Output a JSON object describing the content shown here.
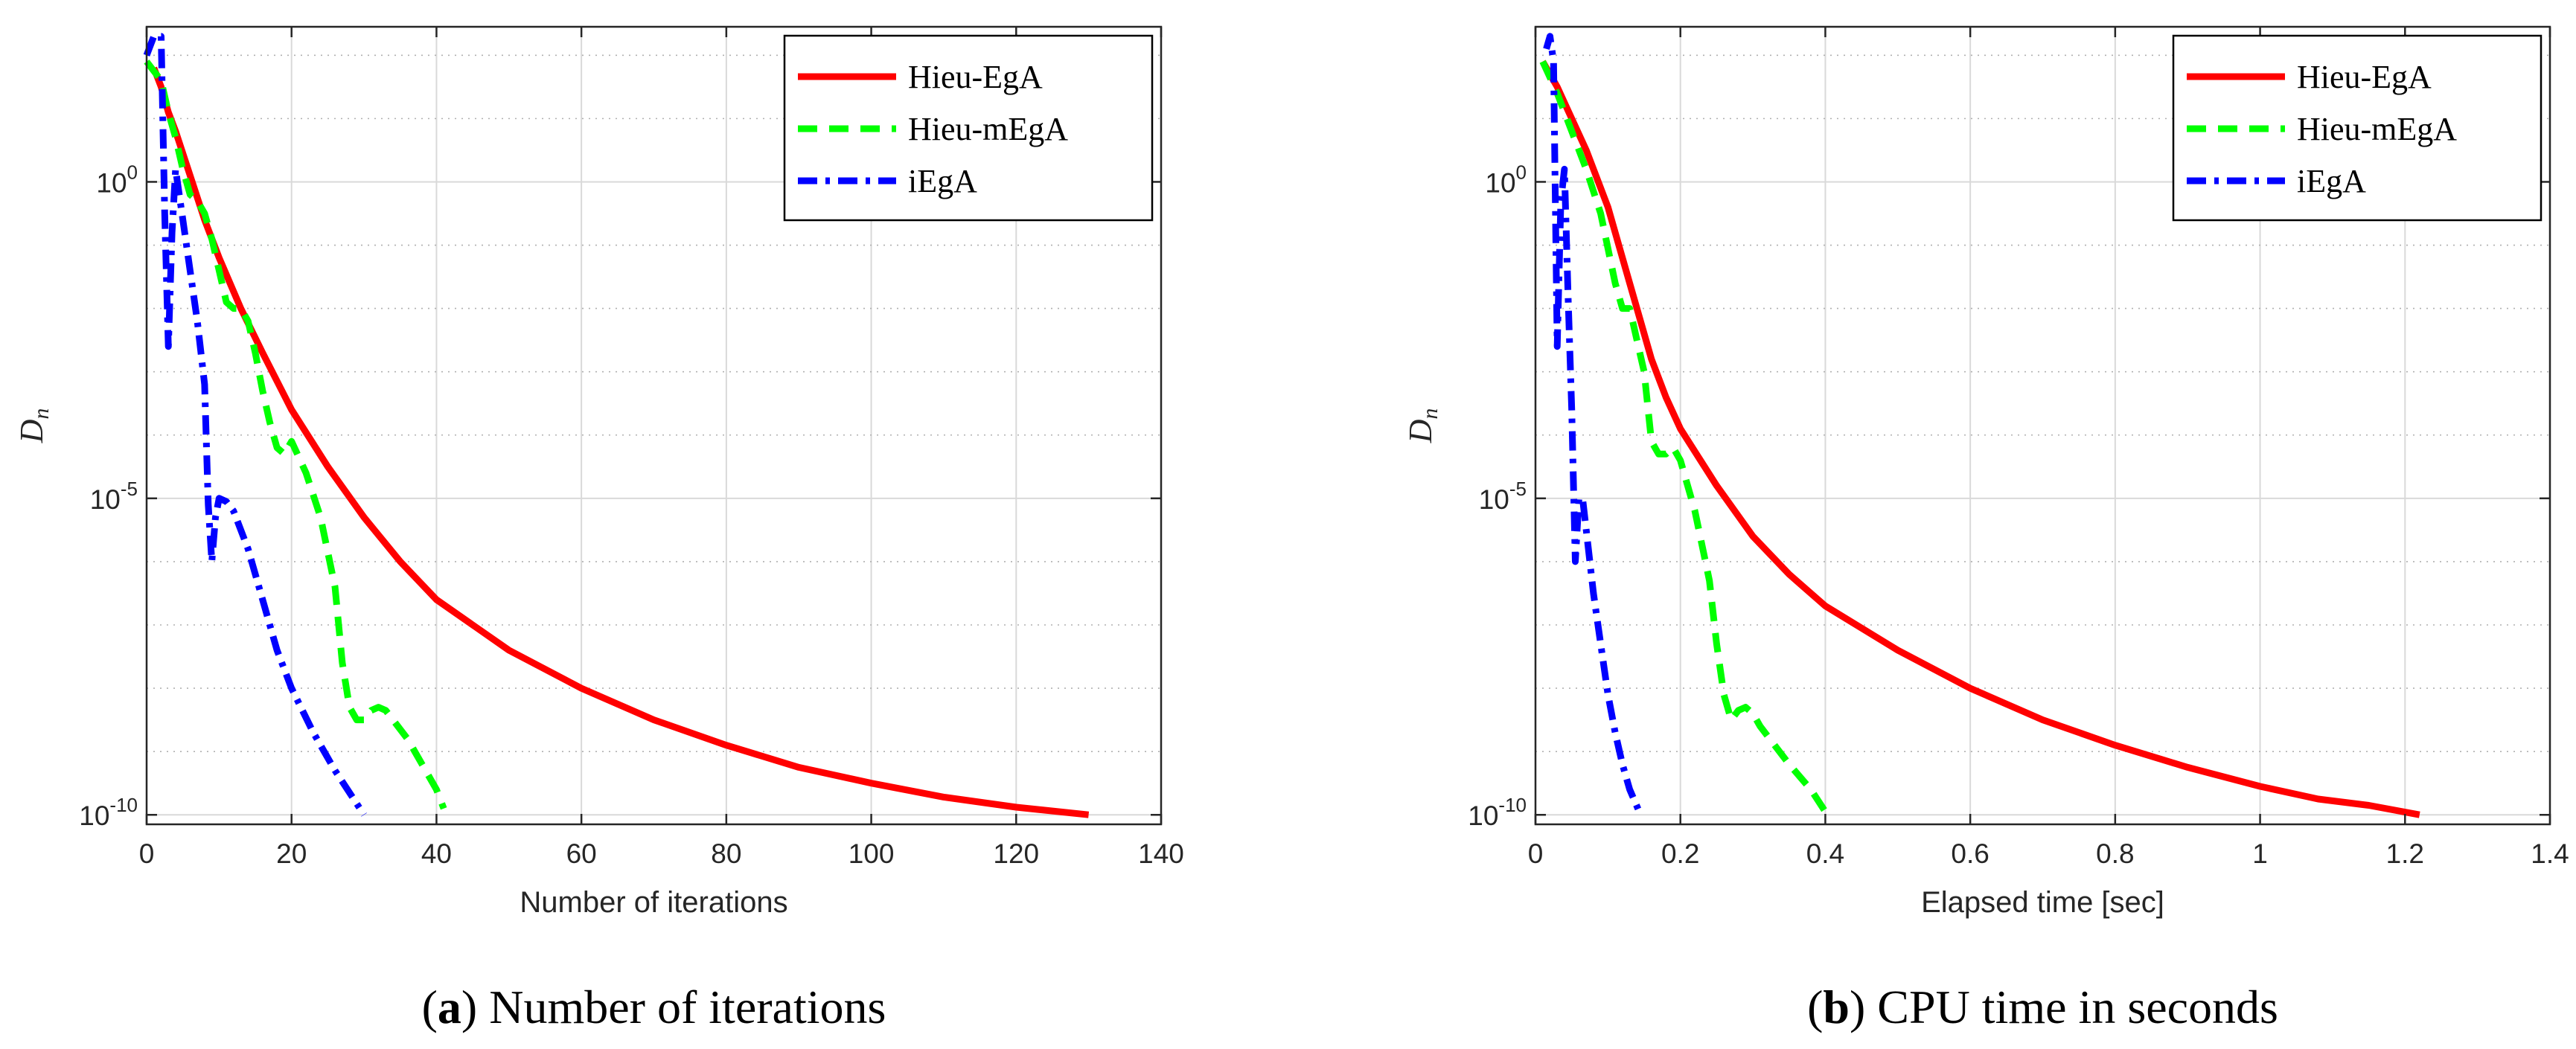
{
  "colors": {
    "hieu_ega": "#ff0000",
    "hieu_mega": "#00ff00",
    "iega": "#0000ff",
    "grid": "#d9d9d9",
    "axis": "#262626"
  },
  "chart_data": [
    {
      "type": "line",
      "panel": "a",
      "xlabel": "Number of iterations",
      "ylabel": "D",
      "ylabel_sub": "n",
      "xlim": [
        0,
        140
      ],
      "ylim_log10": [
        -10.15,
        2.45
      ],
      "y_scale": "log",
      "x_ticks": [
        0,
        20,
        40,
        60,
        80,
        100,
        120,
        140
      ],
      "x_tick_labels": [
        "0",
        "20",
        "40",
        "60",
        "80",
        "100",
        "120",
        "140"
      ],
      "y_ticks_log10": [
        0,
        -5,
        -10
      ],
      "y_tick_labels": [
        {
          "base": "10",
          "exp": "0"
        },
        {
          "base": "10",
          "exp": "-5"
        },
        {
          "base": "10",
          "exp": "-10"
        }
      ],
      "grid": true,
      "legend_location": "top-right",
      "caption_prefix": "(",
      "caption_letter": "a",
      "caption_text": ") Number of iterations",
      "series": [
        {
          "name": "Hieu-EgA",
          "style": "solid",
          "color": "#ff0000",
          "x": [
            1,
            2,
            3,
            4,
            6,
            8,
            10,
            13,
            16,
            20,
            25,
            30,
            35,
            40,
            50,
            60,
            70,
            80,
            90,
            100,
            110,
            120,
            130
          ],
          "log10_y": [
            1.8,
            1.5,
            1.1,
            0.8,
            0.1,
            -0.6,
            -1.2,
            -2.0,
            -2.7,
            -3.6,
            -4.5,
            -5.3,
            -6.0,
            -6.6,
            -7.4,
            -8.0,
            -8.5,
            -8.9,
            -9.25,
            -9.5,
            -9.72,
            -9.88,
            -10.0
          ]
        },
        {
          "name": "Hieu-mEgA",
          "style": "dashed",
          "color": "#00ff00",
          "x": [
            0,
            2,
            3,
            4,
            5,
            6,
            7,
            8,
            9,
            10,
            11,
            12,
            13,
            14,
            15,
            16,
            17,
            18,
            19,
            20,
            22,
            24,
            26,
            27,
            28,
            29,
            30,
            31,
            32,
            33,
            34,
            36,
            38,
            40,
            41
          ],
          "log10_y": [
            1.9,
            1.6,
            1.1,
            0.7,
            0.2,
            -0.2,
            -0.3,
            -0.5,
            -0.9,
            -1.4,
            -1.9,
            -2.0,
            -2.0,
            -2.2,
            -2.7,
            -3.3,
            -3.8,
            -4.2,
            -4.3,
            -4.1,
            -4.6,
            -5.3,
            -6.4,
            -7.6,
            -8.3,
            -8.5,
            -8.5,
            -8.35,
            -8.3,
            -8.35,
            -8.5,
            -8.8,
            -9.2,
            -9.6,
            -9.9
          ]
        },
        {
          "name": "iEgA",
          "style": "dashdot",
          "color": "#0000ff",
          "x": [
            0,
            1,
            2,
            2.5,
            3,
            3.5,
            4,
            5,
            6,
            7,
            8,
            8.5,
            9,
            9.5,
            10,
            11,
            12,
            14,
            16,
            18,
            20,
            23,
            26,
            30
          ],
          "log10_y": [
            2.0,
            2.3,
            2.3,
            -0.5,
            -2.6,
            -0.8,
            0.2,
            -0.6,
            -1.4,
            -2.2,
            -3.2,
            -5.1,
            -6.0,
            -5.3,
            -5.0,
            -5.05,
            -5.2,
            -5.8,
            -6.6,
            -7.4,
            -8.0,
            -8.7,
            -9.3,
            -10.0
          ]
        }
      ]
    },
    {
      "type": "line",
      "panel": "b",
      "xlabel": "Elapsed time [sec]",
      "ylabel": "D",
      "ylabel_sub": "n",
      "xlim": [
        0,
        1.4
      ],
      "ylim_log10": [
        -10.15,
        2.45
      ],
      "y_scale": "log",
      "x_ticks": [
        0,
        0.2,
        0.4,
        0.6,
        0.8,
        1.0,
        1.2,
        1.4
      ],
      "x_tick_labels": [
        "0",
        "0.2",
        "0.4",
        "0.6",
        "0.8",
        "1",
        "1.2",
        "1.4"
      ],
      "y_ticks_log10": [
        0,
        -5,
        -10
      ],
      "y_tick_labels": [
        {
          "base": "10",
          "exp": "0"
        },
        {
          "base": "10",
          "exp": "-5"
        },
        {
          "base": "10",
          "exp": "-10"
        }
      ],
      "grid": true,
      "legend_location": "top-right",
      "caption_prefix": "(",
      "caption_letter": "b",
      "caption_text": ") CPU time in seconds",
      "series": [
        {
          "name": "Hieu-EgA",
          "style": "solid",
          "color": "#ff0000",
          "x": [
            0.01,
            0.03,
            0.05,
            0.07,
            0.1,
            0.12,
            0.14,
            0.16,
            0.18,
            0.2,
            0.25,
            0.3,
            0.35,
            0.4,
            0.5,
            0.6,
            0.7,
            0.8,
            0.9,
            1.0,
            1.08,
            1.15,
            1.22
          ],
          "log10_y": [
            1.9,
            1.5,
            1.0,
            0.5,
            -0.4,
            -1.2,
            -2.0,
            -2.8,
            -3.4,
            -3.9,
            -4.8,
            -5.6,
            -6.2,
            -6.7,
            -7.4,
            -8.0,
            -8.5,
            -8.9,
            -9.25,
            -9.55,
            -9.75,
            -9.85,
            -10.0
          ]
        },
        {
          "name": "Hieu-mEgA",
          "style": "dashed",
          "color": "#00ff00",
          "x": [
            0.01,
            0.03,
            0.05,
            0.07,
            0.09,
            0.11,
            0.12,
            0.13,
            0.14,
            0.15,
            0.16,
            0.17,
            0.18,
            0.19,
            0.2,
            0.22,
            0.24,
            0.25,
            0.26,
            0.27,
            0.28,
            0.29,
            0.3,
            0.31,
            0.33,
            0.35,
            0.38,
            0.4
          ],
          "log10_y": [
            1.9,
            1.4,
            0.8,
            0.2,
            -0.5,
            -1.6,
            -2.0,
            -2.0,
            -2.5,
            -3.0,
            -4.1,
            -4.3,
            -4.3,
            -4.2,
            -4.4,
            -5.2,
            -6.3,
            -7.3,
            -8.1,
            -8.5,
            -8.35,
            -8.3,
            -8.4,
            -8.6,
            -8.9,
            -9.2,
            -9.6,
            -9.95
          ]
        },
        {
          "name": "iEgA",
          "style": "dashdot",
          "color": "#0000ff",
          "x": [
            0.015,
            0.02,
            0.025,
            0.03,
            0.035,
            0.04,
            0.045,
            0.05,
            0.055,
            0.06,
            0.065,
            0.07,
            0.08,
            0.09,
            0.1,
            0.11,
            0.12,
            0.13,
            0.145
          ],
          "log10_y": [
            2.1,
            2.3,
            1.9,
            -2.6,
            -0.3,
            0.2,
            -1.8,
            -3.6,
            -6.0,
            -5.0,
            -5.0,
            -5.5,
            -6.5,
            -7.3,
            -8.1,
            -8.7,
            -9.2,
            -9.6,
            -10.0
          ]
        }
      ]
    }
  ]
}
